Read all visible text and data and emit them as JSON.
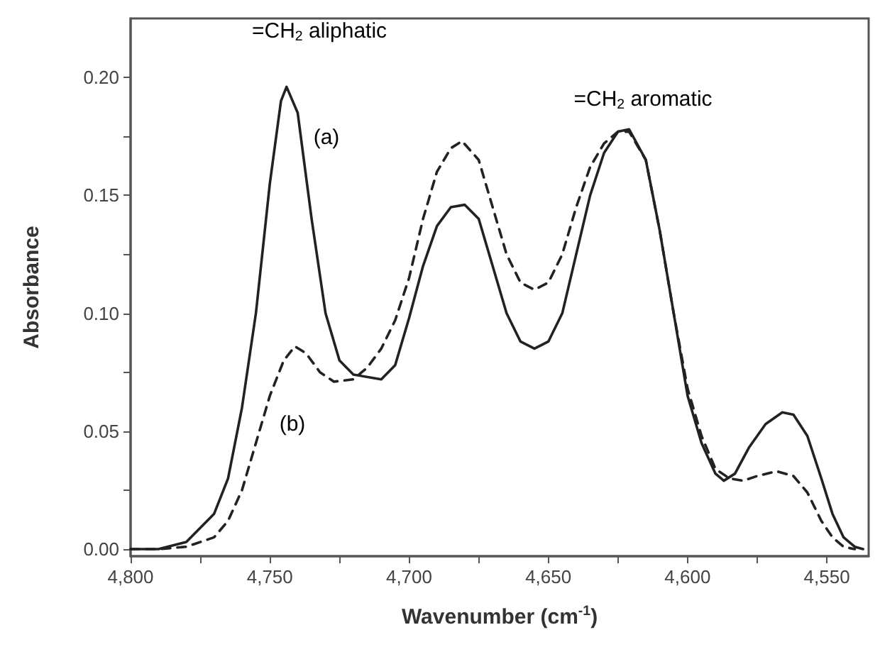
{
  "chart_data": {
    "type": "line",
    "xlabel": "Wavenumber (cm$^{-1}$)",
    "ylabel": "Absorbance",
    "xlim": [
      4800,
      4535
    ],
    "ylim": [
      -0.003,
      0.225
    ],
    "xticks": [
      {
        "value": 4800,
        "label": "4,800"
      },
      {
        "value": 4775,
        "label": null
      },
      {
        "value": 4750,
        "label": "4,750"
      },
      {
        "value": 4725,
        "label": null
      },
      {
        "value": 4700,
        "label": "4,700"
      },
      {
        "value": 4675,
        "label": null
      },
      {
        "value": 4650,
        "label": "4,650"
      },
      {
        "value": 4625,
        "label": null
      },
      {
        "value": 4600,
        "label": "4,600"
      },
      {
        "value": 4575,
        "label": null
      },
      {
        "value": 4550,
        "label": "4,550"
      }
    ],
    "yticks": [
      {
        "value": 0,
        "label": "0.00"
      },
      {
        "value": 0.025,
        "label": null
      },
      {
        "value": 0.05,
        "label": "0.05"
      },
      {
        "value": 0.075,
        "label": null
      },
      {
        "value": 0.1,
        "label": "0.10"
      },
      {
        "value": 0.125,
        "label": null
      },
      {
        "value": 0.15,
        "label": "0.15"
      },
      {
        "value": 0.175,
        "label": null
      },
      {
        "value": 0.2,
        "label": "0.20"
      }
    ],
    "grid": false,
    "marker": "none",
    "series": [
      {
        "color": "#222222",
        "line_style": "solid",
        "x": [
          4800,
          4790,
          4780,
          4770,
          4765,
          4760,
          4755,
          4750,
          4746,
          4744,
          4740,
          4735,
          4730,
          4725,
          4720,
          4710,
          4705,
          4700,
          4695,
          4690,
          4685,
          4680,
          4675,
          4670,
          4665,
          4660,
          4655,
          4650,
          4645,
          4640,
          4635,
          4630,
          4625,
          4621,
          4615,
          4610,
          4605,
          4600,
          4595,
          4590,
          4587,
          4583,
          4578,
          4572,
          4566,
          4562,
          4557,
          4552,
          4548,
          4544,
          4540,
          4537
        ],
        "values": [
          0,
          0,
          0.003,
          0.015,
          0.03,
          0.06,
          0.1,
          0.155,
          0.19,
          0.196,
          0.185,
          0.14,
          0.1,
          0.08,
          0.074,
          0.072,
          0.078,
          0.098,
          0.12,
          0.137,
          0.145,
          0.146,
          0.14,
          0.12,
          0.1,
          0.088,
          0.085,
          0.088,
          0.1,
          0.125,
          0.15,
          0.168,
          0.177,
          0.178,
          0.165,
          0.135,
          0.1,
          0.065,
          0.045,
          0.032,
          0.029,
          0.032,
          0.043,
          0.053,
          0.058,
          0.057,
          0.048,
          0.03,
          0.015,
          0.005,
          0.001,
          0
        ]
      },
      {
        "color": "#222222",
        "line_style": "dashed",
        "x": [
          4800,
          4790,
          4780,
          4770,
          4765,
          4760,
          4755,
          4750,
          4745,
          4741,
          4737,
          4732,
          4727,
          4720,
          4715,
          4710,
          4705,
          4700,
          4695,
          4690,
          4685,
          4681,
          4675,
          4670,
          4665,
          4660,
          4655,
          4650,
          4645,
          4640,
          4635,
          4630,
          4625,
          4621,
          4615,
          4610,
          4605,
          4600,
          4595,
          4590,
          4585,
          4580,
          4575,
          4568,
          4562,
          4557,
          4552,
          4548,
          4544,
          4540
        ],
        "values": [
          0,
          0,
          0.001,
          0.005,
          0.012,
          0.025,
          0.045,
          0.065,
          0.08,
          0.086,
          0.083,
          0.075,
          0.071,
          0.072,
          0.077,
          0.085,
          0.097,
          0.115,
          0.14,
          0.16,
          0.17,
          0.173,
          0.165,
          0.145,
          0.125,
          0.113,
          0.11,
          0.113,
          0.125,
          0.145,
          0.162,
          0.172,
          0.177,
          0.177,
          0.165,
          0.135,
          0.1,
          0.068,
          0.048,
          0.034,
          0.03,
          0.029,
          0.031,
          0.033,
          0.031,
          0.024,
          0.012,
          0.005,
          0.001,
          0
        ]
      }
    ],
    "annotations": [
      "=CH$_{2}$ aliphatic",
      "(a)",
      "(b)",
      "=CH$_{2}$ aromatic"
    ]
  }
}
